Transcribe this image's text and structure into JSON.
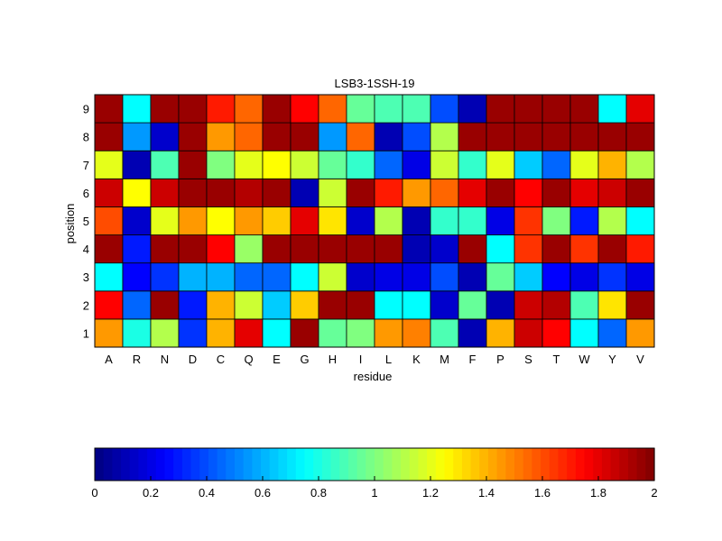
{
  "chart_data": {
    "type": "heatmap",
    "title": "LSB3-1SSH-19",
    "xlabel": "residue",
    "ylabel": "position",
    "x_categories": [
      "A",
      "R",
      "N",
      "D",
      "C",
      "Q",
      "E",
      "G",
      "H",
      "I",
      "L",
      "K",
      "M",
      "F",
      "P",
      "S",
      "T",
      "W",
      "Y",
      "V"
    ],
    "y_categories": [
      "1",
      "2",
      "3",
      "4",
      "5",
      "6",
      "7",
      "8",
      "9"
    ],
    "values": [
      [
        1.45,
        0.8,
        1.1,
        0.35,
        1.4,
        1.8,
        0.75,
        1.95,
        0.95,
        1.0,
        1.45,
        1.5,
        0.9,
        0.1,
        1.4,
        1.85,
        1.75,
        0.75,
        0.45,
        1.45
      ],
      [
        1.75,
        0.45,
        1.95,
        0.3,
        1.4,
        1.15,
        0.65,
        1.35,
        1.95,
        1.95,
        0.75,
        0.75,
        0.15,
        0.95,
        0.1,
        1.85,
        1.9,
        0.9,
        1.3,
        1.95
      ],
      [
        0.75,
        0.25,
        0.35,
        0.6,
        0.6,
        0.45,
        0.45,
        0.75,
        1.15,
        0.15,
        0.2,
        0.2,
        0.4,
        0.1,
        0.95,
        0.65,
        0.25,
        0.2,
        0.35,
        0.2
      ],
      [
        1.95,
        0.3,
        1.95,
        1.95,
        1.75,
        1.05,
        1.95,
        1.95,
        1.95,
        1.95,
        1.95,
        0.1,
        0.15,
        1.95,
        0.75,
        1.65,
        1.95,
        1.65,
        1.95,
        1.7
      ],
      [
        1.6,
        0.15,
        1.2,
        1.45,
        1.25,
        1.45,
        1.35,
        1.8,
        1.3,
        0.15,
        1.1,
        0.1,
        0.85,
        0.85,
        0.2,
        1.65,
        1.0,
        0.3,
        1.1,
        0.75
      ],
      [
        1.85,
        1.25,
        1.85,
        1.95,
        1.95,
        1.9,
        1.95,
        0.1,
        1.15,
        1.95,
        1.7,
        1.45,
        1.55,
        1.8,
        1.95,
        1.75,
        1.95,
        1.8,
        1.85,
        1.95
      ],
      [
        1.2,
        0.1,
        0.9,
        1.95,
        1.0,
        1.2,
        1.25,
        1.15,
        0.95,
        0.85,
        0.45,
        0.2,
        1.15,
        0.85,
        1.2,
        0.65,
        0.45,
        1.2,
        1.4,
        1.1
      ],
      [
        1.95,
        0.55,
        0.15,
        1.95,
        1.45,
        1.55,
        1.95,
        1.95,
        0.55,
        1.55,
        0.1,
        0.4,
        1.1,
        1.95,
        1.95,
        1.95,
        1.95,
        1.95,
        1.95,
        1.95
      ],
      [
        1.95,
        0.75,
        1.95,
        1.95,
        1.7,
        1.55,
        1.95,
        1.75,
        1.55,
        0.95,
        0.9,
        0.9,
        0.4,
        0.1,
        1.95,
        1.95,
        1.95,
        1.95,
        0.75,
        1.8
      ]
    ],
    "colormap": "jet",
    "clim": [
      0,
      2
    ],
    "colorbar": {
      "orientation": "horizontal",
      "placement": "bottom",
      "ticks": [
        "0",
        "0.2",
        "0.4",
        "0.6",
        "0.8",
        "1",
        "1.2",
        "1.4",
        "1.6",
        "1.8",
        "2"
      ]
    },
    "grid": false
  }
}
